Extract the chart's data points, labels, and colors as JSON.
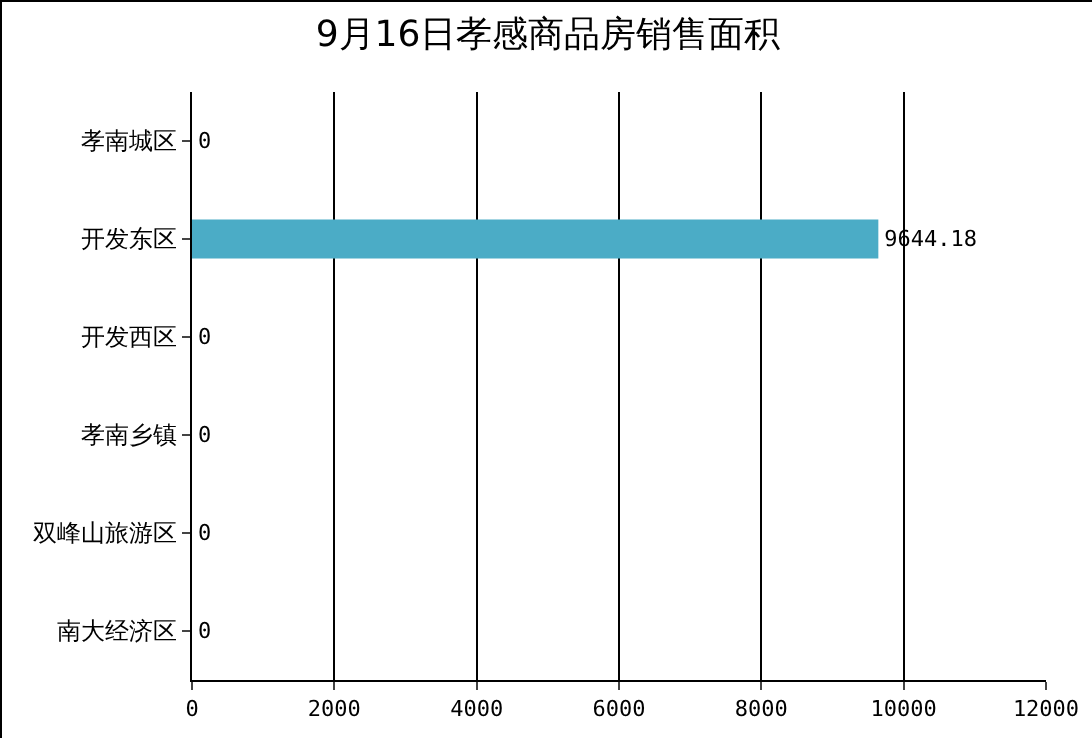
{
  "chart_data": {
    "type": "bar",
    "orientation": "horizontal",
    "title": "9月16日孝感商品房销售面积",
    "categories": [
      "孝南城区",
      "开发东区",
      "开发西区",
      "孝南乡镇",
      "双峰山旅游区",
      "南大经济区"
    ],
    "values": [
      0,
      9644.18,
      0,
      0,
      0,
      0
    ],
    "color": "#4bacc6",
    "xlim": [
      0,
      12000
    ],
    "xticks": [
      0,
      2000,
      4000,
      6000,
      8000,
      10000,
      12000
    ],
    "grid": "x",
    "data_labels": true
  }
}
